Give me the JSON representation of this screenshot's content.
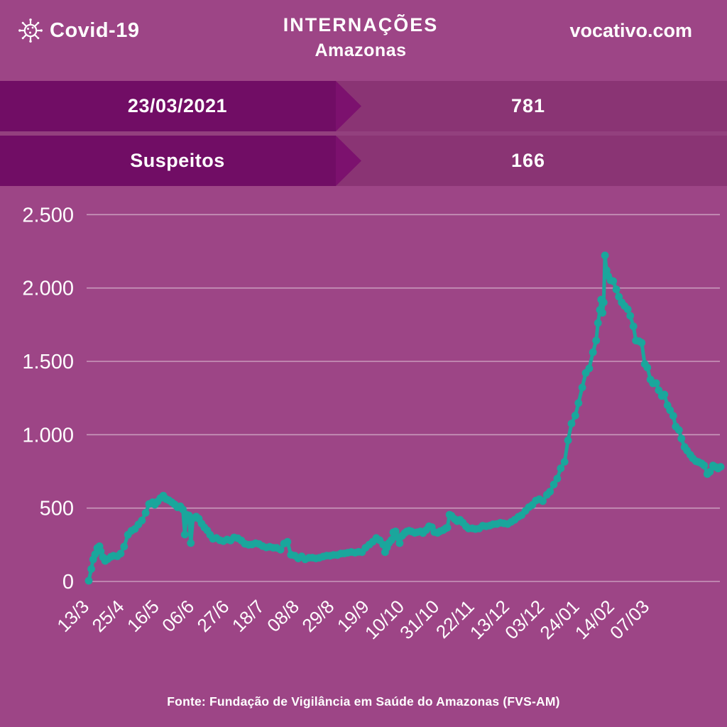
{
  "header": {
    "logo_text": "Covid-19",
    "title": "INTERNAÇÕES",
    "subtitle": "Amazonas",
    "site": "vocativo.com"
  },
  "info_rows": [
    {
      "label": "23/03/2021",
      "value": "781"
    },
    {
      "label": "Suspeitos",
      "value": "166"
    }
  ],
  "footer": {
    "source": "Fonte: Fundação de Vigilância em Saúde do Amazonas (FVS-AM)"
  },
  "colors": {
    "background": "#9d4586",
    "band": "#8a3474",
    "arrow_dark": "#710d65",
    "arrow_tip": "#7c116e",
    "row_gap": "#93407e",
    "line": "#1aa69c",
    "grid": "rgba(255,255,255,0.45)",
    "text": "#ffffff"
  },
  "chart_data": {
    "type": "line",
    "title": "Internações Covid-19 - Amazonas",
    "series_name": "Internações",
    "line_color": "#1aa69c",
    "grid": true,
    "legend": "none",
    "ylim": [
      0,
      2500
    ],
    "y_ticks": [
      {
        "value": 0,
        "label": "0"
      },
      {
        "value": 500,
        "label": "500"
      },
      {
        "value": 1000,
        "label": "1.000"
      },
      {
        "value": 1500,
        "label": "1.500"
      },
      {
        "value": 2000,
        "label": "2.000"
      },
      {
        "value": 2500,
        "label": "2.500"
      }
    ],
    "x_tick_labels": [
      "13/3",
      "25/4",
      "16/5",
      "06/6",
      "27/6",
      "18/7",
      "08/8",
      "29/8",
      "19/9",
      "10/10",
      "31/10",
      "22/11",
      "13/12",
      "03/12",
      "24/01",
      "14/02",
      "07/03"
    ],
    "last_value": 781,
    "peak_value": 2222,
    "points": [
      [
        0,
        5
      ],
      [
        0.4,
        85
      ],
      [
        0.7,
        150
      ],
      [
        1.0,
        185
      ],
      [
        1.35,
        228
      ],
      [
        1.7,
        240
      ],
      [
        1.9,
        205
      ],
      [
        2.25,
        165
      ],
      [
        2.6,
        140
      ],
      [
        3.0,
        152
      ],
      [
        3.5,
        168
      ],
      [
        3.9,
        175
      ],
      [
        4.5,
        172
      ],
      [
        5.05,
        190
      ],
      [
        5.6,
        238
      ],
      [
        6.2,
        318
      ],
      [
        6.75,
        345
      ],
      [
        7.3,
        358
      ],
      [
        7.85,
        388
      ],
      [
        8.4,
        415
      ],
      [
        9.0,
        468
      ],
      [
        9.55,
        528
      ],
      [
        10.1,
        540
      ],
      [
        10.45,
        523
      ],
      [
        10.9,
        545
      ],
      [
        11.35,
        568
      ],
      [
        11.8,
        585
      ],
      [
        12.25,
        562
      ],
      [
        12.7,
        553
      ],
      [
        13.15,
        540
      ],
      [
        13.6,
        525
      ],
      [
        14.05,
        505
      ],
      [
        14.5,
        512
      ],
      [
        14.9,
        490
      ],
      [
        15.2,
        320
      ],
      [
        15.5,
        455
      ],
      [
        15.85,
        450
      ],
      [
        16.15,
        262
      ],
      [
        16.5,
        430
      ],
      [
        17.0,
        442
      ],
      [
        17.4,
        428
      ],
      [
        17.85,
        395
      ],
      [
        18.3,
        368
      ],
      [
        18.75,
        348
      ],
      [
        19.2,
        318
      ],
      [
        19.65,
        291
      ],
      [
        20.2,
        296
      ],
      [
        20.75,
        281
      ],
      [
        21.3,
        275
      ],
      [
        21.9,
        286
      ],
      [
        22.45,
        279
      ],
      [
        23.0,
        300
      ],
      [
        23.6,
        294
      ],
      [
        24.15,
        279
      ],
      [
        24.7,
        257
      ],
      [
        25.3,
        250
      ],
      [
        25.85,
        252
      ],
      [
        26.4,
        261
      ],
      [
        26.95,
        255
      ],
      [
        27.5,
        241
      ],
      [
        28.1,
        232
      ],
      [
        28.65,
        236
      ],
      [
        29.2,
        230
      ],
      [
        29.75,
        229
      ],
      [
        30.35,
        217
      ],
      [
        30.9,
        258
      ],
      [
        31.45,
        270
      ],
      [
        32.0,
        182
      ],
      [
        32.6,
        176
      ],
      [
        33.15,
        157
      ],
      [
        33.7,
        171
      ],
      [
        34.25,
        151
      ],
      [
        34.85,
        161
      ],
      [
        35.4,
        162
      ],
      [
        35.95,
        157
      ],
      [
        36.5,
        161
      ],
      [
        37.1,
        170
      ],
      [
        37.65,
        176
      ],
      [
        38.2,
        175
      ],
      [
        38.75,
        181
      ],
      [
        39.35,
        180
      ],
      [
        39.9,
        190
      ],
      [
        40.45,
        191
      ],
      [
        41.0,
        196
      ],
      [
        41.55,
        201
      ],
      [
        42.15,
        196
      ],
      [
        42.7,
        202
      ],
      [
        43.25,
        200
      ],
      [
        43.8,
        230
      ],
      [
        44.4,
        251
      ],
      [
        44.95,
        271
      ],
      [
        45.5,
        296
      ],
      [
        46.05,
        281
      ],
      [
        46.6,
        251
      ],
      [
        46.9,
        200
      ],
      [
        47.2,
        232
      ],
      [
        47.5,
        262
      ],
      [
        47.9,
        282
      ],
      [
        48.2,
        335
      ],
      [
        48.55,
        341
      ],
      [
        48.9,
        301
      ],
      [
        49.2,
        261
      ],
      [
        49.6,
        311
      ],
      [
        50.0,
        330
      ],
      [
        50.35,
        341
      ],
      [
        50.7,
        346
      ],
      [
        51.1,
        340
      ],
      [
        51.6,
        331
      ],
      [
        52.0,
        336
      ],
      [
        52.5,
        341
      ],
      [
        52.9,
        330
      ],
      [
        53.4,
        351
      ],
      [
        53.85,
        376
      ],
      [
        54.3,
        370
      ],
      [
        54.7,
        337
      ],
      [
        55.2,
        331
      ],
      [
        55.6,
        342
      ],
      [
        56.1,
        350
      ],
      [
        56.5,
        362
      ],
      [
        56.75,
        367
      ],
      [
        57.1,
        455
      ],
      [
        57.4,
        448
      ],
      [
        57.9,
        426
      ],
      [
        58.3,
        411
      ],
      [
        58.75,
        420
      ],
      [
        59.2,
        401
      ],
      [
        59.7,
        376
      ],
      [
        60.1,
        361
      ],
      [
        60.7,
        362
      ],
      [
        61.2,
        357
      ],
      [
        61.8,
        361
      ],
      [
        62.35,
        380
      ],
      [
        62.9,
        376
      ],
      [
        63.5,
        381
      ],
      [
        64.0,
        390
      ],
      [
        64.6,
        392
      ],
      [
        65.15,
        400
      ],
      [
        65.7,
        396
      ],
      [
        66.3,
        392
      ],
      [
        66.85,
        406
      ],
      [
        67.4,
        420
      ],
      [
        68.0,
        441
      ],
      [
        68.5,
        452
      ],
      [
        69.1,
        481
      ],
      [
        69.65,
        506
      ],
      [
        70.2,
        521
      ],
      [
        70.75,
        551
      ],
      [
        71.3,
        561
      ],
      [
        71.85,
        548
      ],
      [
        72.5,
        591
      ],
      [
        73.0,
        612
      ],
      [
        73.6,
        661
      ],
      [
        74.15,
        701
      ],
      [
        74.7,
        771
      ],
      [
        75.3,
        816
      ],
      [
        75.85,
        962
      ],
      [
        76.4,
        1076
      ],
      [
        77.0,
        1131
      ],
      [
        77.5,
        1216
      ],
      [
        78.1,
        1322
      ],
      [
        78.65,
        1421
      ],
      [
        79.2,
        1452
      ],
      [
        79.8,
        1562
      ],
      [
        80.3,
        1642
      ],
      [
        80.6,
        1762
      ],
      [
        80.9,
        1851
      ],
      [
        81.1,
        1921
      ],
      [
        81.3,
        1831
      ],
      [
        81.5,
        1902
      ],
      [
        81.7,
        2222
      ],
      [
        81.95,
        2121
      ],
      [
        82.2,
        2082
      ],
      [
        82.6,
        2052
      ],
      [
        83.0,
        2047
      ],
      [
        83.5,
        1990
      ],
      [
        83.9,
        1941
      ],
      [
        84.35,
        1902
      ],
      [
        84.8,
        1878
      ],
      [
        85.3,
        1855
      ],
      [
        85.7,
        1811
      ],
      [
        86.2,
        1739
      ],
      [
        86.6,
        1642
      ],
      [
        87.1,
        1637
      ],
      [
        87.5,
        1627
      ],
      [
        88.0,
        1482
      ],
      [
        88.4,
        1458
      ],
      [
        88.9,
        1376
      ],
      [
        89.3,
        1350
      ],
      [
        89.8,
        1352
      ],
      [
        90.2,
        1303
      ],
      [
        90.7,
        1264
      ],
      [
        91.1,
        1274
      ],
      [
        91.6,
        1201
      ],
      [
        92.0,
        1167
      ],
      [
        92.5,
        1129
      ],
      [
        92.9,
        1056
      ],
      [
        93.4,
        1032
      ],
      [
        93.8,
        974
      ],
      [
        94.3,
        916
      ],
      [
        94.7,
        892
      ],
      [
        95.2,
        863
      ],
      [
        95.6,
        839
      ],
      [
        96.1,
        819
      ],
      [
        96.5,
        814
      ],
      [
        97.0,
        804
      ],
      [
        97.4,
        790
      ],
      [
        97.9,
        732
      ],
      [
        98.3,
        747
      ],
      [
        98.8,
        790
      ],
      [
        99.2,
        780
      ],
      [
        99.6,
        770
      ],
      [
        100,
        781
      ]
    ]
  }
}
